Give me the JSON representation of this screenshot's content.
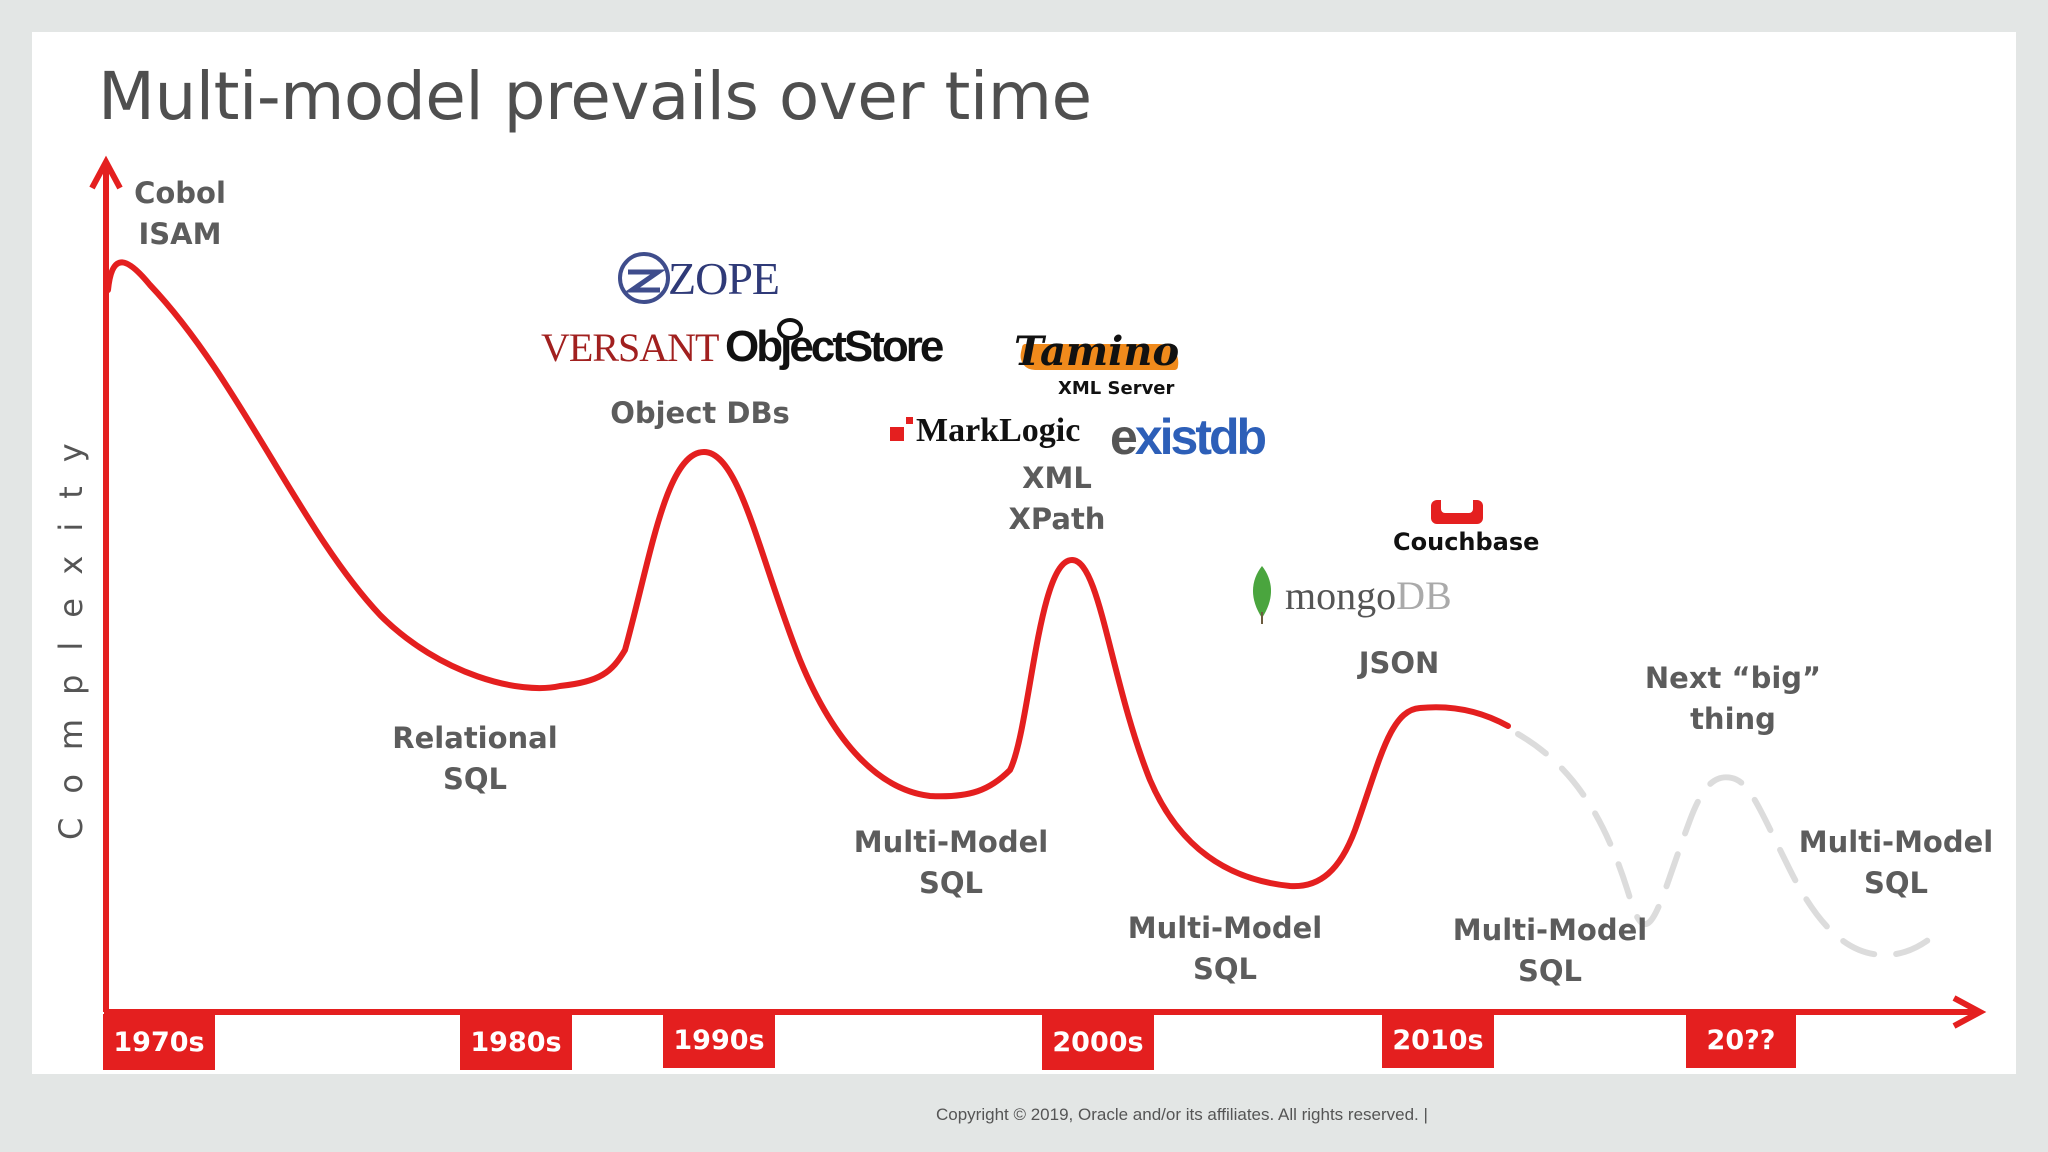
{
  "slide": {
    "title": "Multi-model prevails over time",
    "y_axis_label": "Complexity",
    "copyright": "Copyright © 2019, Oracle and/or its affiliates. All rights reserved.  |"
  },
  "decades": [
    "1970s",
    "1980s",
    "1990s",
    "2000s",
    "2010s",
    "20??"
  ],
  "labels": {
    "cobol": [
      "Cobol",
      "ISAM"
    ],
    "relational": [
      "Relational",
      "SQL"
    ],
    "object_dbs": [
      "Object DBs"
    ],
    "mm1": [
      "Multi-Model",
      "SQL"
    ],
    "xml": [
      "XML",
      "XPath"
    ],
    "mm2": [
      "Multi-Model",
      "SQL"
    ],
    "json": [
      "JSON"
    ],
    "mm3": [
      "Multi-Model",
      "SQL"
    ],
    "next": [
      "Next “big”",
      "thing"
    ],
    "mm4": [
      "Multi-Model",
      "SQL"
    ]
  },
  "logos": {
    "zope": "ZOPE",
    "versant": "VERSANT",
    "objectstore": "ObjectStore",
    "tamino": "Tamino",
    "tamino_sub": "XML Server",
    "marklogic": "MarkLogic",
    "existdb_e": "e",
    "existdb_x": "x",
    "existdb_rest": "istdb",
    "couchbase": "Couchbase",
    "mongodb_a": "mongo",
    "mongodb_b": "DB"
  },
  "colors": {
    "accent_red": "#e41f1f",
    "dashed_gray": "#dcdcdc",
    "text_gray": "#5c5c5c"
  }
}
